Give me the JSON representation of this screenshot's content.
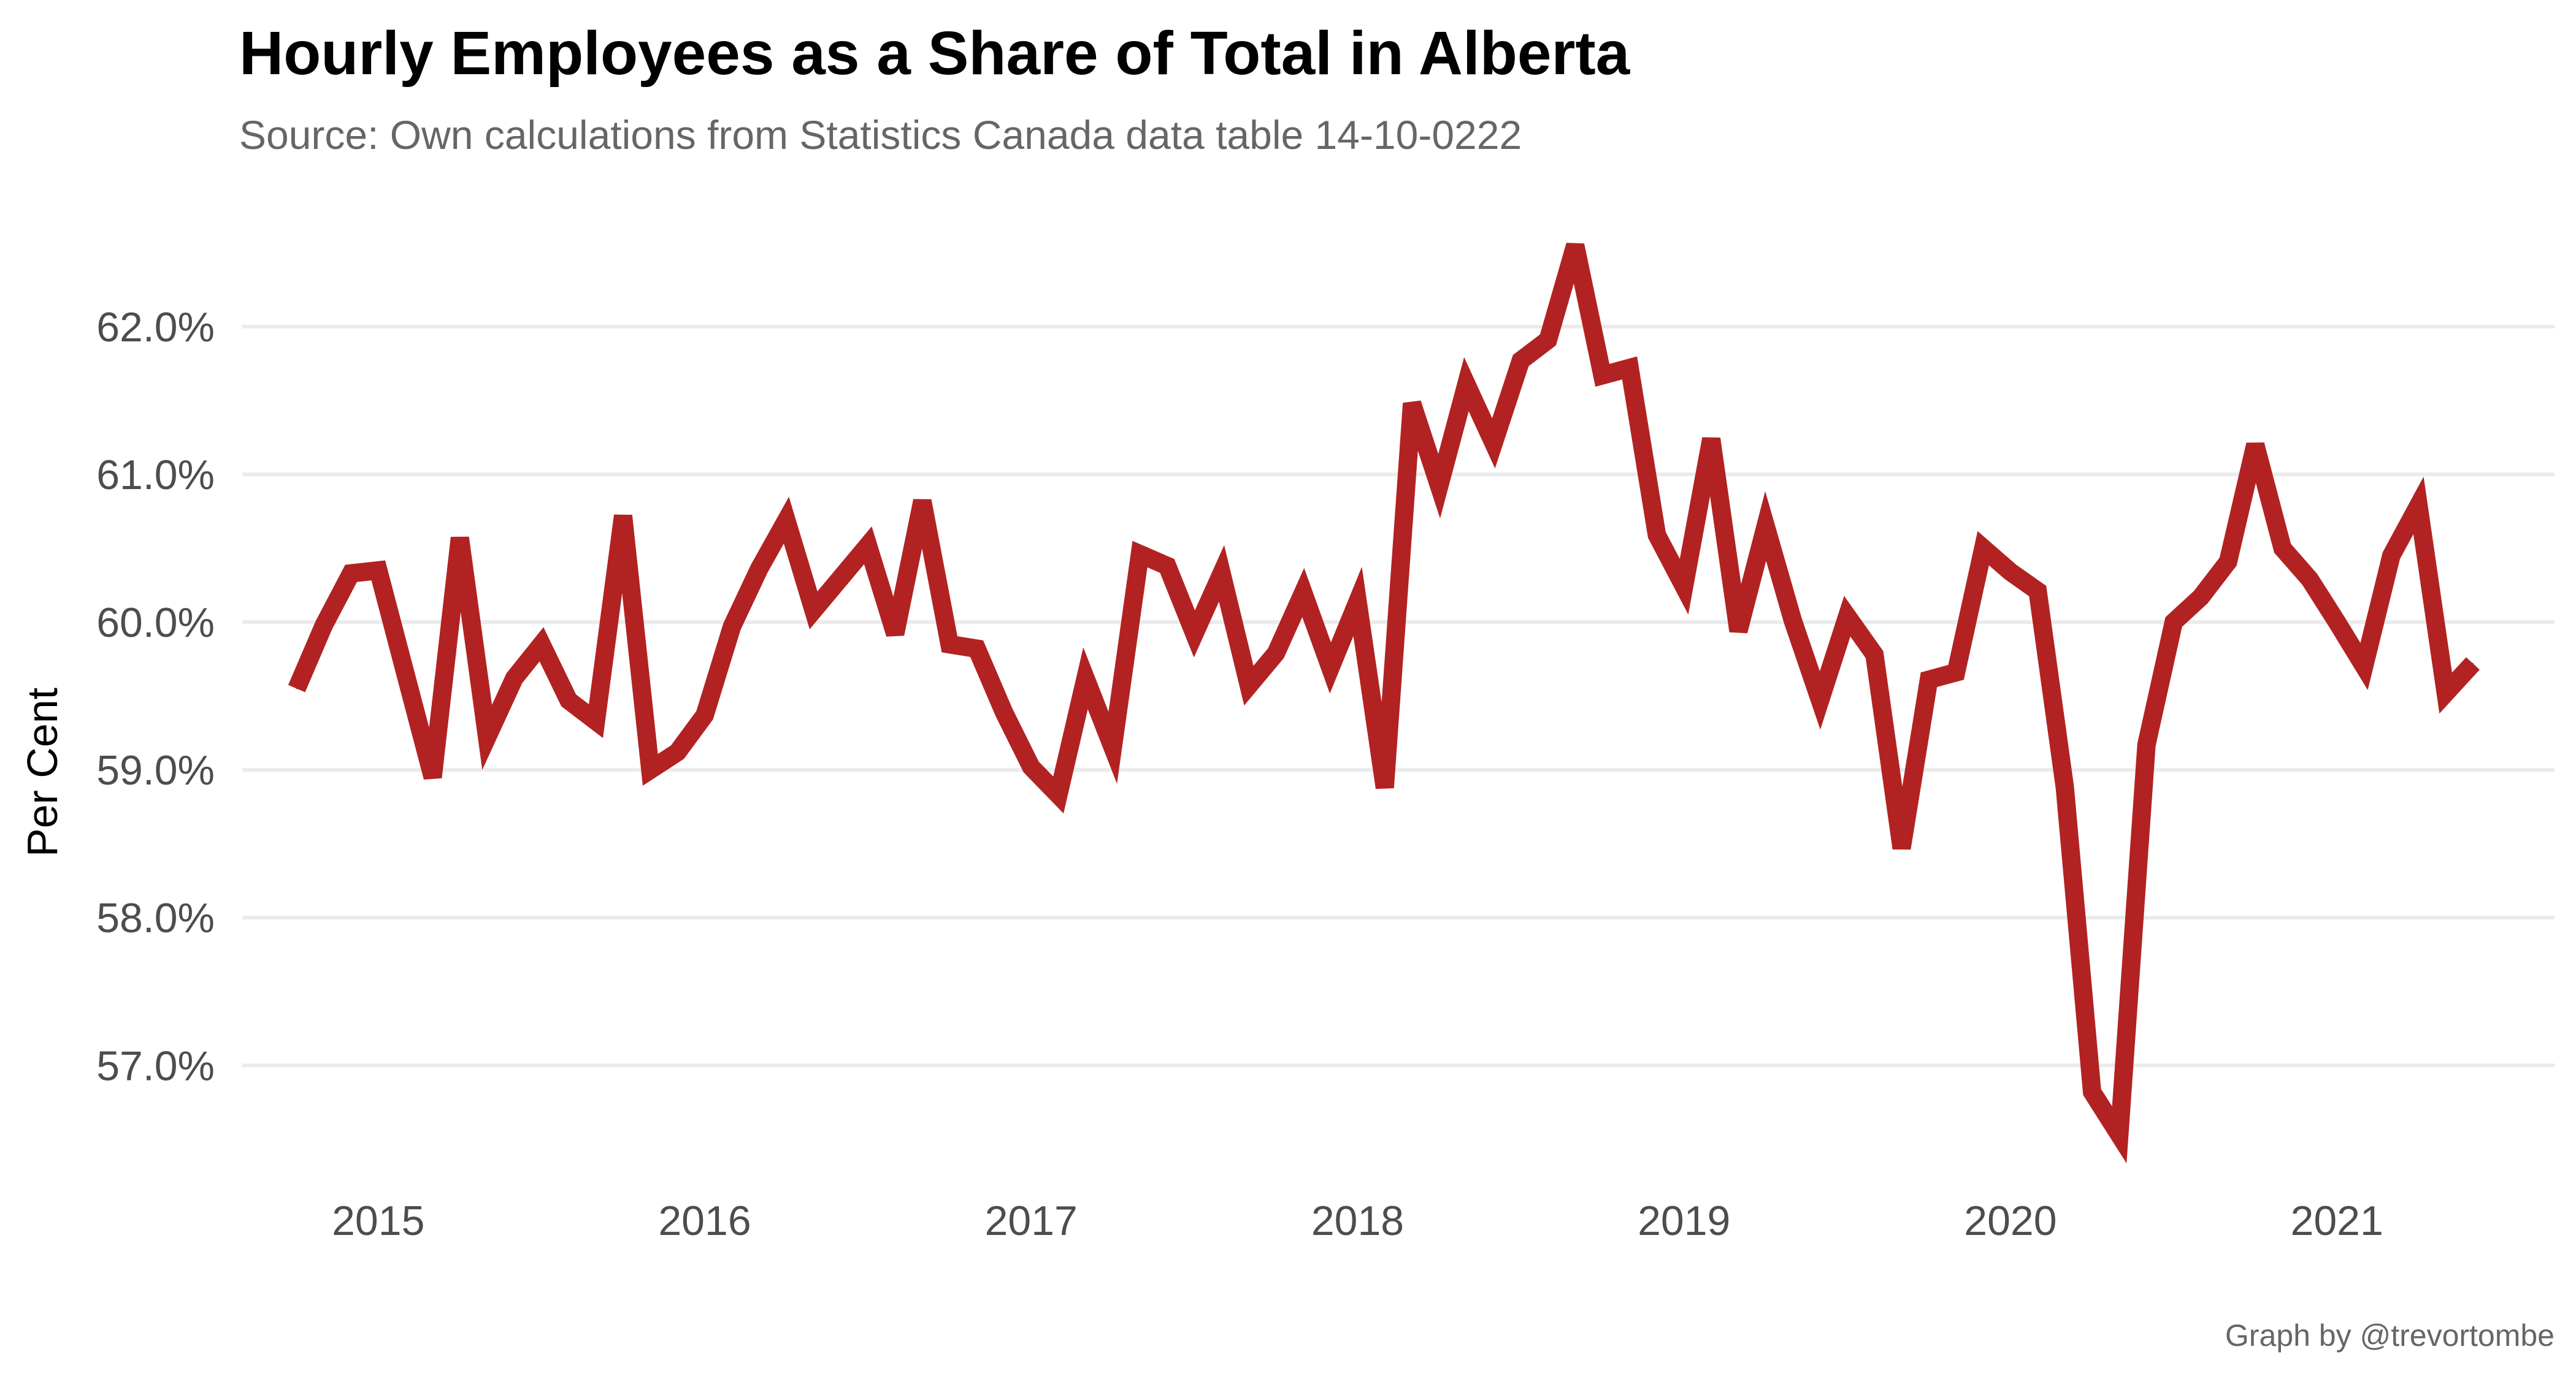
{
  "chart_data": {
    "type": "line",
    "title": "Hourly Employees as a Share of Total in Alberta",
    "subtitle": "Source: Own calculations from Statistics Canada data table 14-10-0222",
    "caption": "Graph by @trevortombe",
    "xlabel": "",
    "ylabel": "Per Cent",
    "x_ticks": [
      "2015",
      "2016",
      "2017",
      "2018",
      "2019",
      "2020",
      "2021"
    ],
    "y_ticks": [
      "57.0%",
      "58.0%",
      "59.0%",
      "60.0%",
      "61.0%",
      "62.0%"
    ],
    "y_tick_values": [
      57,
      58,
      59,
      60,
      61,
      62
    ],
    "ylim": [
      56.35,
      62.8
    ],
    "xlim": [
      "2014-08",
      "2021-09"
    ],
    "grid": "horizontal",
    "legend": "none",
    "color": "#B22222",
    "series": [
      {
        "x": [
          "2014-10",
          "2014-11",
          "2014-12",
          "2015-01",
          "2015-02",
          "2015-03",
          "2015-04",
          "2015-05",
          "2015-06",
          "2015-07",
          "2015-08",
          "2015-09",
          "2015-10",
          "2015-11",
          "2015-12",
          "2016-01",
          "2016-02",
          "2016-03",
          "2016-04",
          "2016-05",
          "2016-06",
          "2016-07",
          "2016-08",
          "2016-09",
          "2016-10",
          "2016-11",
          "2016-12",
          "2017-01",
          "2017-02",
          "2017-03",
          "2017-04",
          "2017-05",
          "2017-06",
          "2017-07",
          "2017-08",
          "2017-09",
          "2017-10",
          "2017-11",
          "2017-12",
          "2018-01",
          "2018-02",
          "2018-03",
          "2018-04",
          "2018-05",
          "2018-06",
          "2018-07",
          "2018-08",
          "2018-09",
          "2018-10",
          "2018-11",
          "2018-12",
          "2019-01",
          "2019-02",
          "2019-03",
          "2019-04",
          "2019-05",
          "2019-06",
          "2019-07",
          "2019-08",
          "2019-09",
          "2019-10",
          "2019-11",
          "2019-12",
          "2020-01",
          "2020-02",
          "2020-03",
          "2020-04",
          "2020-05",
          "2020-06",
          "2020-07",
          "2020-08",
          "2020-09",
          "2020-10",
          "2020-11",
          "2020-12",
          "2021-01",
          "2021-02",
          "2021-03",
          "2021-04",
          "2021-05",
          "2021-06"
        ],
        "values": [
          59.55,
          59.98,
          60.33,
          60.35,
          59.65,
          58.95,
          60.57,
          59.22,
          59.62,
          59.85,
          59.47,
          59.33,
          60.72,
          59.0,
          59.12,
          59.37,
          59.97,
          60.36,
          60.69,
          60.08,
          60.3,
          60.52,
          59.92,
          60.82,
          59.85,
          59.82,
          59.39,
          59.02,
          58.83,
          59.62,
          59.15,
          60.46,
          60.38,
          59.92,
          60.33,
          59.57,
          59.79,
          60.2,
          59.69,
          60.14,
          58.88,
          61.48,
          60.92,
          61.61,
          61.21,
          61.77,
          61.91,
          62.55,
          61.67,
          61.72,
          60.59,
          60.24,
          61.24,
          59.94,
          60.65,
          60.01,
          59.47,
          60.04,
          59.78,
          58.47,
          59.61,
          59.66,
          60.5,
          60.34,
          60.21,
          58.88,
          56.82,
          56.53,
          59.17,
          60.0,
          60.17,
          60.41,
          61.2,
          60.5,
          60.29,
          60.0,
          59.7,
          60.45,
          60.79,
          59.52,
          59.72
        ]
      }
    ]
  }
}
